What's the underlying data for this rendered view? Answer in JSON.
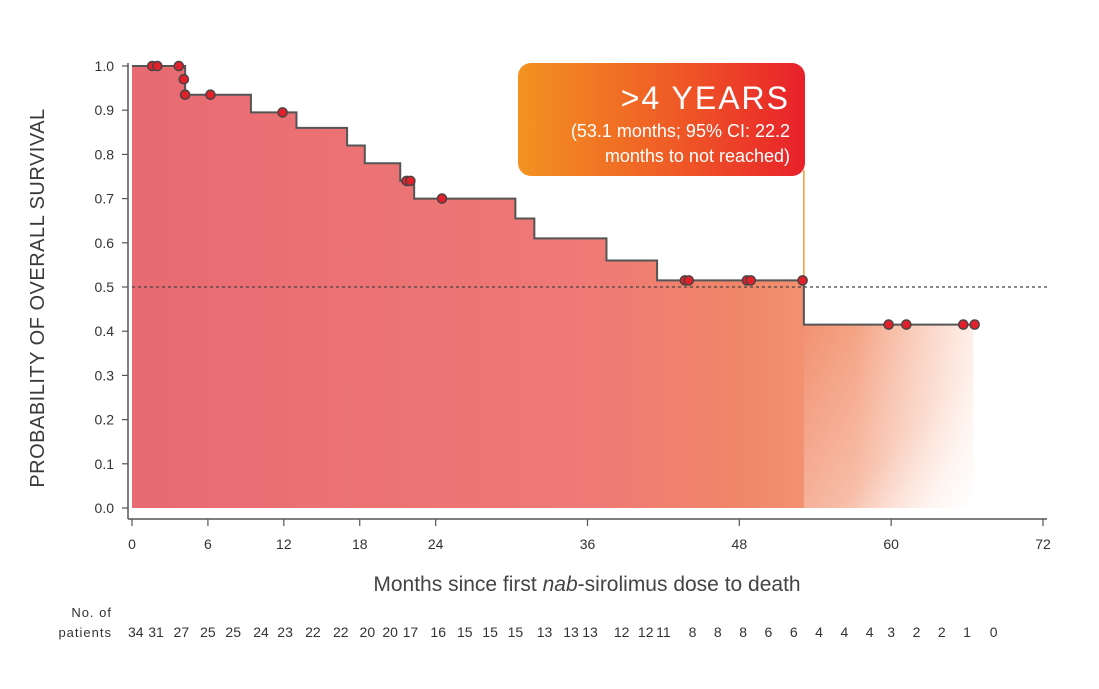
{
  "chart_data": {
    "type": "line",
    "subtype": "kaplan-meier",
    "title": "",
    "xlabel_parts": [
      "Months since first ",
      "nab",
      "-sirolimus dose to death"
    ],
    "ylabel": "PROBABILITY OF OVERALL SURVIVAL",
    "xlim": [
      0,
      72
    ],
    "ylim": [
      0,
      1.0
    ],
    "x_ticks": [
      "0",
      "6",
      "12",
      "18",
      "24",
      "36",
      "48",
      "60",
      "72"
    ],
    "y_ticks": [
      "0.0",
      "0.1",
      "0.2",
      "0.3",
      "0.4",
      "0.5",
      "0.6",
      "0.7",
      "0.8",
      "0.9",
      "1.0"
    ],
    "reference_line": {
      "y": 0.5,
      "style": "dashed"
    },
    "median_line": {
      "x": 53.1
    },
    "steps": [
      {
        "x": 0,
        "y": 1.0
      },
      {
        "x": 4.2,
        "y": 0.935
      },
      {
        "x": 9.4,
        "y": 0.895
      },
      {
        "x": 13.0,
        "y": 0.86
      },
      {
        "x": 17.0,
        "y": 0.82
      },
      {
        "x": 18.4,
        "y": 0.78
      },
      {
        "x": 21.2,
        "y": 0.74
      },
      {
        "x": 22.3,
        "y": 0.7
      },
      {
        "x": 30.3,
        "y": 0.655
      },
      {
        "x": 31.8,
        "y": 0.61
      },
      {
        "x": 37.5,
        "y": 0.56
      },
      {
        "x": 41.5,
        "y": 0.515
      },
      {
        "x": 53.1,
        "y": 0.415
      },
      {
        "x": 66.5,
        "y": 0.415
      }
    ],
    "censored": [
      {
        "x": 1.6,
        "y": 1.0
      },
      {
        "x": 2.0,
        "y": 1.0
      },
      {
        "x": 3.7,
        "y": 1.0
      },
      {
        "x": 4.1,
        "y": 0.97
      },
      {
        "x": 4.2,
        "y": 0.935
      },
      {
        "x": 6.2,
        "y": 0.935
      },
      {
        "x": 11.9,
        "y": 0.895
      },
      {
        "x": 21.7,
        "y": 0.74
      },
      {
        "x": 22.0,
        "y": 0.74
      },
      {
        "x": 24.5,
        "y": 0.7
      },
      {
        "x": 43.7,
        "y": 0.515
      },
      {
        "x": 44.0,
        "y": 0.515
      },
      {
        "x": 48.6,
        "y": 0.515
      },
      {
        "x": 48.9,
        "y": 0.515
      },
      {
        "x": 53.0,
        "y": 0.515
      },
      {
        "x": 59.8,
        "y": 0.415
      },
      {
        "x": 61.2,
        "y": 0.415
      },
      {
        "x": 65.7,
        "y": 0.415
      },
      {
        "x": 66.6,
        "y": 0.415
      }
    ],
    "colors": {
      "fill_main": "#e86a72",
      "fill_orange": "#f08060",
      "step_line": "#555555",
      "marker_fill": "#e0202a",
      "marker_stroke": "#444444",
      "median_line": "#f39c38",
      "callout_start": "#f39322",
      "callout_end": "#e8212a"
    },
    "callout": {
      "headline": ">4 YEARS",
      "line1": "(53.1 months; 95% CI: 22.2",
      "line2": "months to not reached)"
    },
    "risk_table": {
      "label_line1": "No. of",
      "label_line2": "patients",
      "counts": [
        {
          "x": 0.3,
          "n": "34"
        },
        {
          "x": 1.9,
          "n": "31"
        },
        {
          "x": 3.9,
          "n": "27"
        },
        {
          "x": 6.0,
          "n": "25"
        },
        {
          "x": 8.0,
          "n": "25"
        },
        {
          "x": 10.2,
          "n": "24"
        },
        {
          "x": 12.1,
          "n": "23"
        },
        {
          "x": 14.3,
          "n": "22"
        },
        {
          "x": 16.5,
          "n": "22"
        },
        {
          "x": 18.6,
          "n": "20"
        },
        {
          "x": 20.4,
          "n": "20"
        },
        {
          "x": 22.0,
          "n": "17"
        },
        {
          "x": 24.2,
          "n": "16"
        },
        {
          "x": 26.3,
          "n": "15"
        },
        {
          "x": 28.3,
          "n": "15"
        },
        {
          "x": 30.3,
          "n": "15"
        },
        {
          "x": 32.6,
          "n": "13"
        },
        {
          "x": 34.7,
          "n": "13"
        },
        {
          "x": 36.2,
          "n": "13"
        },
        {
          "x": 38.7,
          "n": "12"
        },
        {
          "x": 40.6,
          "n": "12"
        },
        {
          "x": 42.0,
          "n": "11"
        },
        {
          "x": 44.3,
          "n": "8"
        },
        {
          "x": 46.3,
          "n": "8"
        },
        {
          "x": 48.3,
          "n": "8"
        },
        {
          "x": 50.3,
          "n": "6"
        },
        {
          "x": 52.3,
          "n": "6"
        },
        {
          "x": 54.3,
          "n": "4"
        },
        {
          "x": 56.3,
          "n": "4"
        },
        {
          "x": 58.3,
          "n": "4"
        },
        {
          "x": 60.0,
          "n": "3"
        },
        {
          "x": 62.0,
          "n": "2"
        },
        {
          "x": 64.0,
          "n": "2"
        },
        {
          "x": 66.0,
          "n": "1"
        },
        {
          "x": 68.1,
          "n": "0"
        }
      ]
    }
  }
}
